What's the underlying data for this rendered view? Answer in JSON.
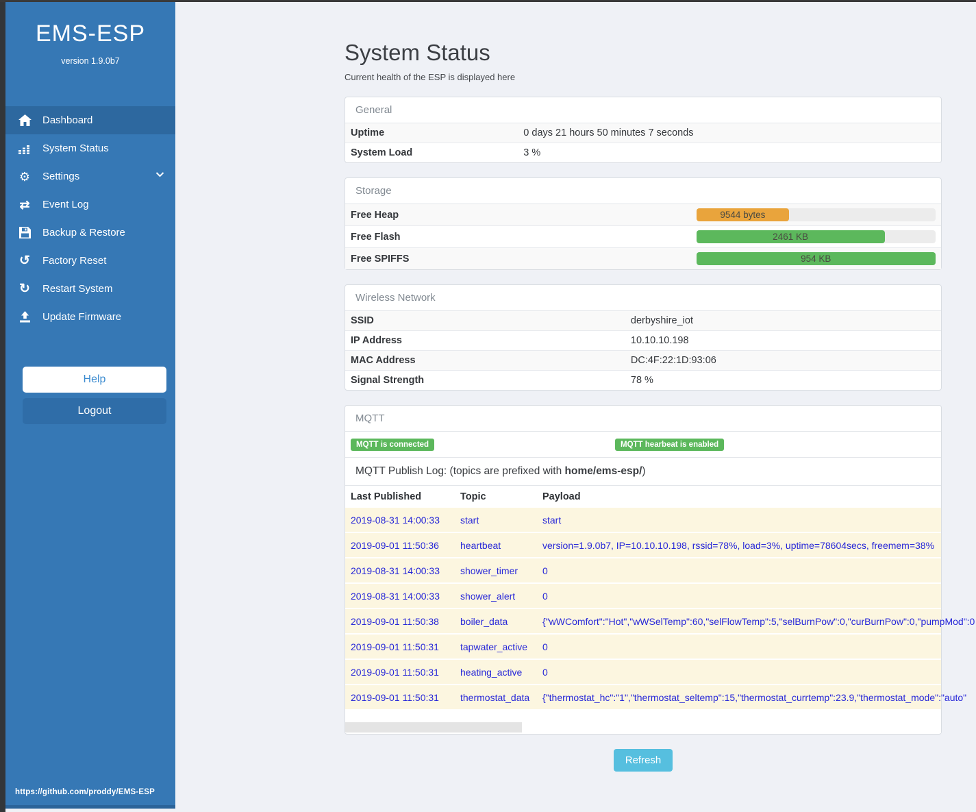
{
  "colors": {
    "sidebar_blue": "#3678b5",
    "active_item_blue": "#2d689f",
    "badge_green": "#5cb85c",
    "bar_orange": "#e9a43c",
    "bar_green": "#5cb85c",
    "refresh_blue": "#56bfdf",
    "log_link_blue": "#2727d8",
    "log_row_beige": "#fcf6e0"
  },
  "sidebar": {
    "title": "EMS-ESP",
    "version": "version 1.9.0b7",
    "items": [
      {
        "label": "Dashboard",
        "icon": "home-icon",
        "active": true,
        "chevron": false
      },
      {
        "label": "System Status",
        "icon": "chart-bars-icon",
        "active": false,
        "chevron": false
      },
      {
        "label": "Settings",
        "icon": "gear-icon",
        "active": false,
        "chevron": true
      },
      {
        "label": "Event Log",
        "icon": "exchange-arrows-icon",
        "active": false,
        "chevron": false
      },
      {
        "label": "Backup & Restore",
        "icon": "save-icon",
        "active": false,
        "chevron": false
      },
      {
        "label": "Factory Reset",
        "icon": "rotate-left-icon",
        "active": false,
        "chevron": false
      },
      {
        "label": "Restart System",
        "icon": "refresh-icon",
        "active": false,
        "chevron": false
      },
      {
        "label": "Update Firmware",
        "icon": "upload-icon",
        "active": false,
        "chevron": false
      }
    ],
    "help_label": "Help",
    "logout_label": "Logout",
    "footer_link": "https://github.com/proddy/EMS-ESP"
  },
  "page": {
    "title": "System Status",
    "subtitle": "Current health of the ESP is displayed here",
    "refresh_label": "Refresh"
  },
  "general": {
    "header": "General",
    "rows": [
      {
        "label": "Uptime",
        "value": "0 days 21 hours 50 minutes 7 seconds"
      },
      {
        "label": "System Load",
        "value": "3 %"
      }
    ]
  },
  "storage": {
    "header": "Storage",
    "bars": [
      {
        "label": "Free Heap",
        "value": "9544 bytes",
        "percent": 38.8,
        "color": "#e9a43c"
      },
      {
        "label": "Free Flash",
        "value": "2461 KB",
        "percent": 78.7,
        "color": "#5cb85c"
      },
      {
        "label": "Free SPIFFS",
        "value": "954 KB",
        "percent": 100,
        "color": "#5cb85c"
      }
    ]
  },
  "wireless": {
    "header": "Wireless Network",
    "rows": [
      {
        "label": "SSID",
        "value": "derbyshire_iot"
      },
      {
        "label": "IP Address",
        "value": "10.10.10.198"
      },
      {
        "label": "MAC Address",
        "value": "DC:4F:22:1D:93:06"
      },
      {
        "label": "Signal Strength",
        "value": "78 %"
      }
    ]
  },
  "mqtt": {
    "header": "MQTT",
    "badges": [
      "MQTT is connected",
      "MQTT hearbeat is enabled"
    ],
    "log_title_prefix": "MQTT Publish Log: (topics are prefixed with ",
    "log_title_bold": "home/ems-esp/",
    "log_title_suffix": ")",
    "columns": [
      "Last Published",
      "Topic",
      "Payload"
    ],
    "rows": [
      {
        "published": "2019-08-31 14:00:33",
        "topic": "start",
        "payload": "start"
      },
      {
        "published": "2019-09-01 11:50:36",
        "topic": "heartbeat",
        "payload": "version=1.9.0b7, IP=10.10.10.198, rssid=78%, load=3%, uptime=78604secs, freemem=38%"
      },
      {
        "published": "2019-08-31 14:00:33",
        "topic": "shower_timer",
        "payload": "0"
      },
      {
        "published": "2019-08-31 14:00:33",
        "topic": "shower_alert",
        "payload": "0"
      },
      {
        "published": "2019-09-01 11:50:38",
        "topic": "boiler_data",
        "payload": "{\"wWComfort\":\"Hot\",\"wWSelTemp\":60,\"selFlowTemp\":5,\"selBurnPow\":0,\"curBurnPow\":0,\"pumpMod\":0"
      },
      {
        "published": "2019-09-01 11:50:31",
        "topic": "tapwater_active",
        "payload": "0"
      },
      {
        "published": "2019-09-01 11:50:31",
        "topic": "heating_active",
        "payload": "0"
      },
      {
        "published": "2019-09-01 11:50:31",
        "topic": "thermostat_data",
        "payload": "{\"thermostat_hc\":\"1\",\"thermostat_seltemp\":15,\"thermostat_currtemp\":23.9,\"thermostat_mode\":\"auto\""
      }
    ]
  }
}
